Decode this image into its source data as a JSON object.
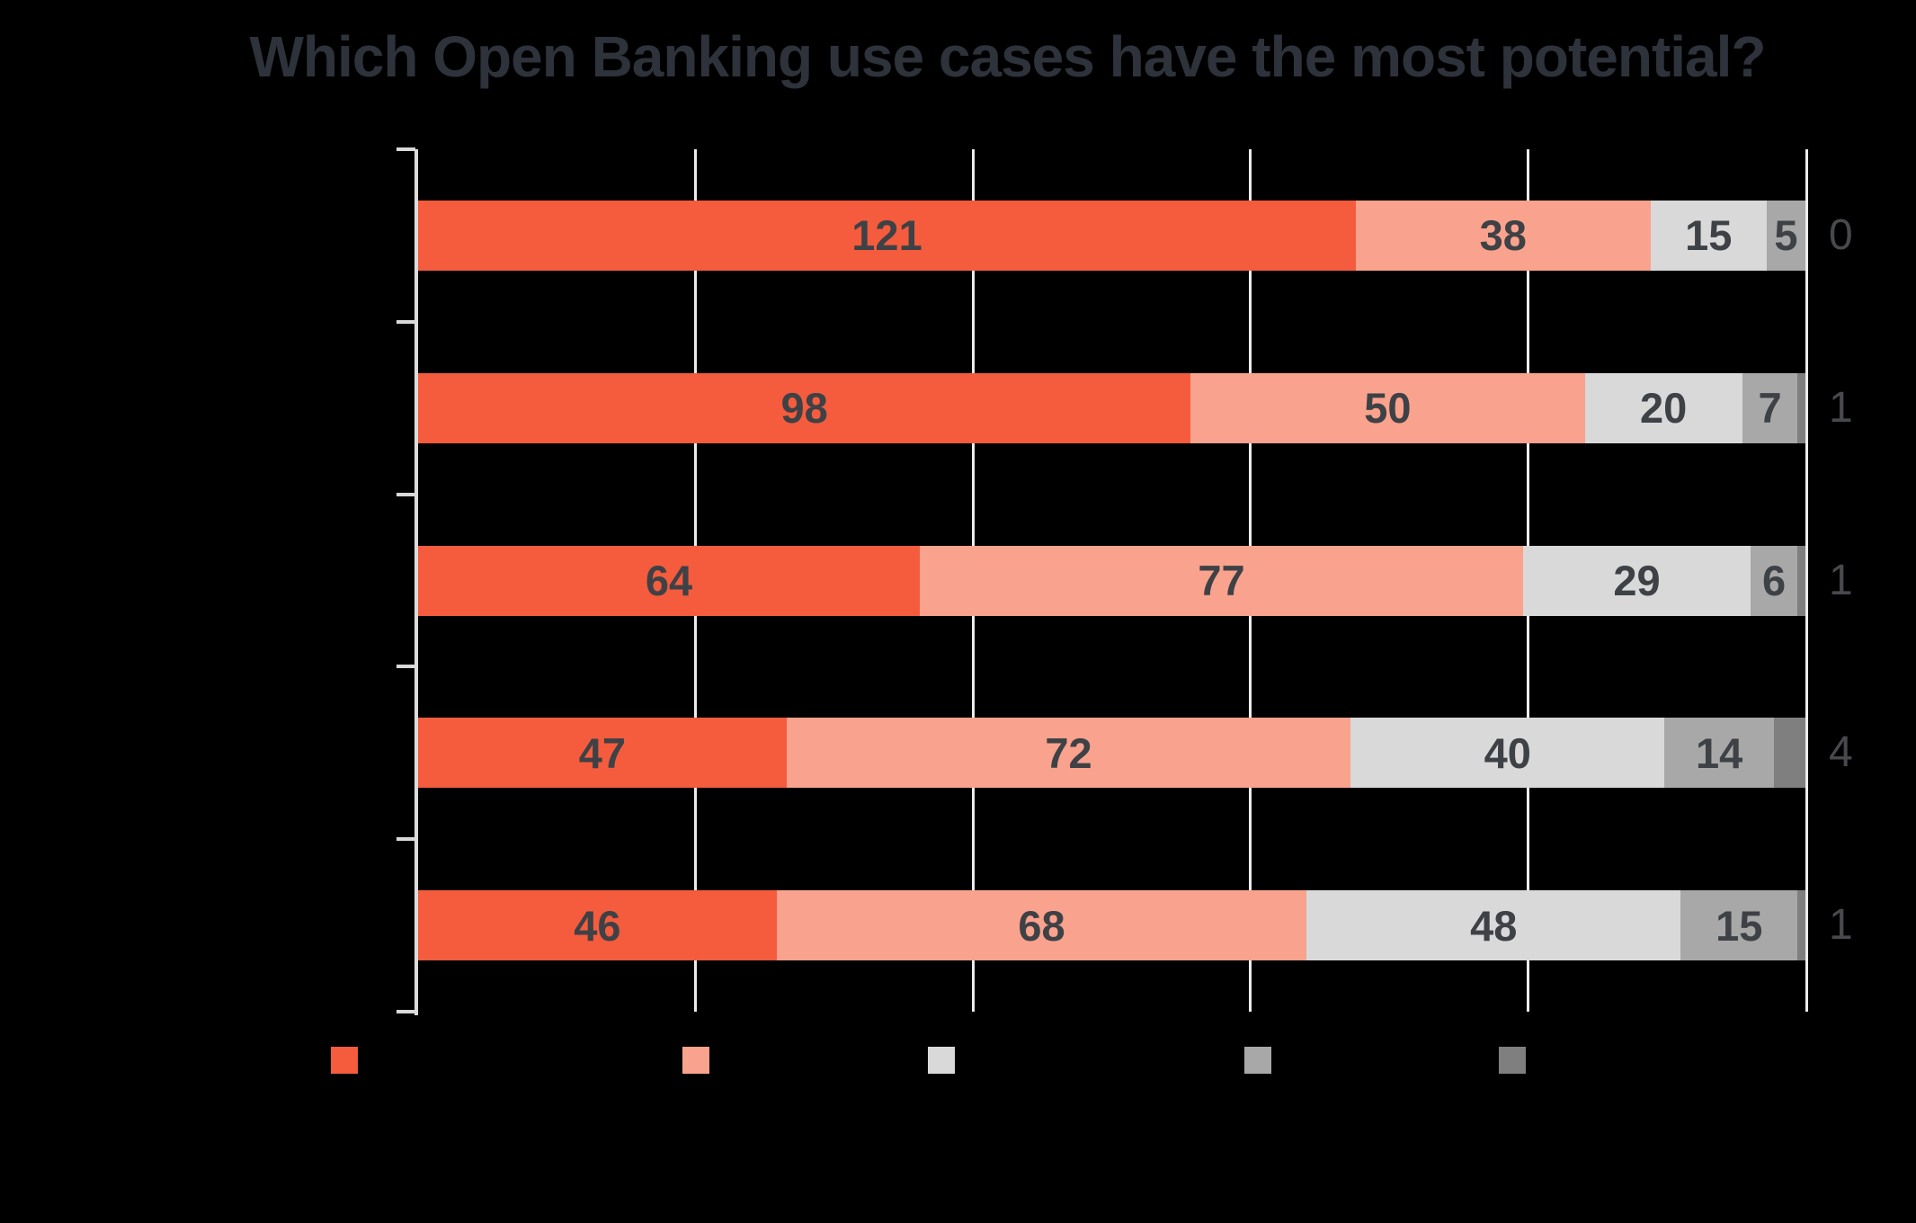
{
  "title": "Which Open Banking use cases have the most potential?",
  "colors": {
    "background": "#000000",
    "title_text": "#2e323b",
    "inside_value_label": "#3e4145",
    "outside_value_label": "#47494d",
    "axis_line": "#dcdcdc",
    "gridline": "#ececec"
  },
  "chart_data": {
    "type": "bar",
    "subtype": "horizontal-stacked",
    "title": "Which Open Banking use cases have the most potential?",
    "categories": [
      "",
      "",
      "",
      "",
      ""
    ],
    "category_labels_visible": false,
    "series": [
      {
        "name": "segment-1",
        "color": "#f45c3d",
        "values": [
          121,
          98,
          64,
          47,
          46
        ]
      },
      {
        "name": "segment-2",
        "color": "#f9a28d",
        "values": [
          38,
          50,
          77,
          72,
          68
        ]
      },
      {
        "name": "segment-3",
        "color": "#d9d9d9",
        "values": [
          15,
          20,
          29,
          40,
          48
        ]
      },
      {
        "name": "segment-4",
        "color": "#a8a8a8",
        "values": [
          5,
          7,
          6,
          14,
          15
        ]
      },
      {
        "name": "segment-5",
        "color": "#7f7f7f",
        "values": [
          0,
          1,
          1,
          4,
          1
        ]
      }
    ],
    "outside_value_labels": [
      "0",
      "1",
      "1",
      "4",
      "1"
    ],
    "grid": {
      "vertical_gridlines": 5,
      "visible": true
    },
    "axis": {
      "y_axis_line_visible": true,
      "tick_marks": 6
    },
    "legend": {
      "position": "bottom",
      "labels_visible": false,
      "swatch_colors": [
        "#f45c3d",
        "#f9a28d",
        "#d9d9d9",
        "#a8a8a8",
        "#7f7f7f"
      ]
    }
  }
}
